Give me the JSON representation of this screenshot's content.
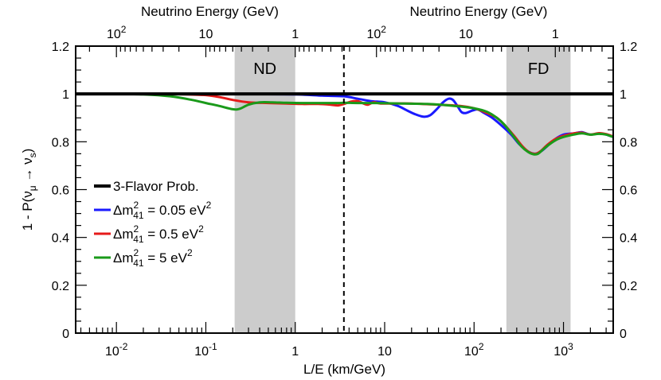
{
  "chart_data": {
    "type": "line",
    "xscale": "log",
    "xlabel": "L/E (km/GeV)",
    "xlim": [
      0.0035,
      3600
    ],
    "ylabel": "1 - P(ν_μ → ν_s)",
    "ylim": [
      0,
      1.2
    ],
    "y_ticks": [
      "0",
      "0.2",
      "0.4",
      "0.6",
      "0.8",
      "1",
      "1.2"
    ],
    "x_ticks": [
      {
        "value": 0.01,
        "base": "10",
        "exp": "-2"
      },
      {
        "value": 0.1,
        "base": "10",
        "exp": "-1"
      },
      {
        "value": 1,
        "base": "1",
        "exp": ""
      },
      {
        "value": 10,
        "base": "10",
        "exp": ""
      },
      {
        "value": 100,
        "base": "10",
        "exp": "2"
      },
      {
        "value": 1000,
        "base": "10",
        "exp": "3"
      }
    ],
    "top_axes": [
      {
        "label": "Neutrino Energy (GeV)",
        "baseline_km": 1.0,
        "xrange": [
          0.0035,
          3.5
        ],
        "ticks": [
          {
            "energy": 100,
            "base": "10",
            "exp": "2"
          },
          {
            "energy": 10,
            "base": "10",
            "exp": ""
          },
          {
            "energy": 1,
            "base": "1",
            "exp": ""
          }
        ]
      },
      {
        "label": "Neutrino Energy (GeV)",
        "baseline_km": 810,
        "xrange": [
          3.5,
          3600
        ],
        "ticks": [
          {
            "energy": 100,
            "base": "10",
            "exp": "2"
          },
          {
            "energy": 10,
            "base": "10",
            "exp": ""
          },
          {
            "energy": 1,
            "base": "1",
            "exp": ""
          }
        ]
      }
    ],
    "bands": [
      {
        "label": "ND",
        "x_range": [
          0.21,
          1.0
        ],
        "color": "#cccccc"
      },
      {
        "label": "FD",
        "x_range": [
          230,
          1200
        ],
        "color": "#cccccc"
      }
    ],
    "divider_x": 3.5,
    "legend_position": "bottom-left",
    "legend": [
      {
        "text": "3-Flavor Prob.",
        "color": "#000000"
      },
      {
        "text": "Δm²₄₁ = 0.05 eV²",
        "color": "#1a1aff",
        "main": "Δm",
        "sup": "2",
        "sub": "41",
        "rest": " = 0.05 eV",
        "rest_sup": "2"
      },
      {
        "text": "Δm²₄₁ = 0.5 eV²",
        "color": "#e61a1a",
        "main": "Δm",
        "sup": "2",
        "sub": "41",
        "rest": " = 0.5 eV",
        "rest_sup": "2"
      },
      {
        "text": "Δm²₄₁ = 5 eV²",
        "color": "#1a9a1a",
        "main": "Δm",
        "sup": "2",
        "sub": "41",
        "rest": " = 5 eV",
        "rest_sup": "2"
      }
    ],
    "series": [
      {
        "name": "3-Flavor Prob.",
        "color": "#000000",
        "width": 4,
        "points": [
          [
            0.0035,
            1.0
          ],
          [
            3600,
            1.0
          ]
        ]
      },
      {
        "name": "Δm²₄₁ = 0.05 eV²",
        "color": "#1a1aff",
        "width": 3,
        "points": [
          [
            0.0035,
            1.0
          ],
          [
            0.05,
            1.0
          ],
          [
            0.3,
            0.999
          ],
          [
            1,
            0.998
          ],
          [
            2,
            0.993
          ],
          [
            3.5,
            0.99
          ],
          [
            5,
            0.98
          ],
          [
            7,
            0.97
          ],
          [
            10,
            0.965
          ],
          [
            14,
            0.95
          ],
          [
            18,
            0.93
          ],
          [
            22,
            0.915
          ],
          [
            27,
            0.905
          ],
          [
            32,
            0.91
          ],
          [
            38,
            0.935
          ],
          [
            45,
            0.965
          ],
          [
            52,
            0.98
          ],
          [
            58,
            0.975
          ],
          [
            65,
            0.95
          ],
          [
            72,
            0.925
          ],
          [
            80,
            0.92
          ],
          [
            95,
            0.93
          ],
          [
            110,
            0.935
          ],
          [
            130,
            0.92
          ],
          [
            160,
            0.9
          ],
          [
            200,
            0.87
          ],
          [
            260,
            0.83
          ],
          [
            320,
            0.79
          ],
          [
            400,
            0.76
          ],
          [
            480,
            0.75
          ],
          [
            560,
            0.76
          ],
          [
            650,
            0.78
          ],
          [
            800,
            0.81
          ],
          [
            1000,
            0.83
          ],
          [
            1300,
            0.835
          ],
          [
            1600,
            0.84
          ],
          [
            2000,
            0.83
          ],
          [
            2500,
            0.835
          ],
          [
            3000,
            0.83
          ],
          [
            3600,
            0.82
          ]
        ]
      },
      {
        "name": "Δm²₄₁ = 0.5 eV²",
        "color": "#e61a1a",
        "width": 3,
        "points": [
          [
            0.0035,
            1.0
          ],
          [
            0.02,
            1.0
          ],
          [
            0.05,
            0.999
          ],
          [
            0.1,
            0.995
          ],
          [
            0.15,
            0.985
          ],
          [
            0.2,
            0.975
          ],
          [
            0.3,
            0.965
          ],
          [
            0.5,
            0.962
          ],
          [
            0.8,
            0.96
          ],
          [
            1.2,
            0.958
          ],
          [
            1.8,
            0.958
          ],
          [
            2.5,
            0.955
          ],
          [
            3.0,
            0.952
          ],
          [
            3.5,
            0.958
          ],
          [
            4.2,
            0.968
          ],
          [
            5,
            0.97
          ],
          [
            5.8,
            0.96
          ],
          [
            6.5,
            0.955
          ],
          [
            7.5,
            0.965
          ],
          [
            9,
            0.96
          ],
          [
            12,
            0.96
          ],
          [
            20,
            0.96
          ],
          [
            40,
            0.955
          ],
          [
            70,
            0.95
          ],
          [
            100,
            0.94
          ],
          [
            140,
            0.92
          ],
          [
            180,
            0.9
          ],
          [
            220,
            0.87
          ],
          [
            280,
            0.825
          ],
          [
            350,
            0.78
          ],
          [
            420,
            0.755
          ],
          [
            490,
            0.75
          ],
          [
            560,
            0.762
          ],
          [
            650,
            0.785
          ],
          [
            800,
            0.81
          ],
          [
            1000,
            0.825
          ],
          [
            1300,
            0.835
          ],
          [
            1600,
            0.838
          ],
          [
            2000,
            0.83
          ],
          [
            2500,
            0.836
          ],
          [
            3000,
            0.832
          ],
          [
            3600,
            0.822
          ]
        ]
      },
      {
        "name": "Δm²₄₁ = 5 eV²",
        "color": "#1a9a1a",
        "width": 3,
        "points": [
          [
            0.0035,
            1.0
          ],
          [
            0.01,
            1.0
          ],
          [
            0.02,
            0.998
          ],
          [
            0.04,
            0.99
          ],
          [
            0.07,
            0.975
          ],
          [
            0.1,
            0.962
          ],
          [
            0.14,
            0.95
          ],
          [
            0.2,
            0.936
          ],
          [
            0.24,
            0.938
          ],
          [
            0.3,
            0.955
          ],
          [
            0.4,
            0.965
          ],
          [
            0.55,
            0.965
          ],
          [
            0.8,
            0.963
          ],
          [
            1.2,
            0.962
          ],
          [
            2,
            0.962
          ],
          [
            3,
            0.962
          ],
          [
            3.5,
            0.963
          ],
          [
            5,
            0.962
          ],
          [
            8,
            0.962
          ],
          [
            15,
            0.96
          ],
          [
            30,
            0.958
          ],
          [
            60,
            0.95
          ],
          [
            100,
            0.94
          ],
          [
            140,
            0.925
          ],
          [
            180,
            0.9
          ],
          [
            220,
            0.87
          ],
          [
            280,
            0.82
          ],
          [
            340,
            0.78
          ],
          [
            400,
            0.758
          ],
          [
            460,
            0.748
          ],
          [
            520,
            0.75
          ],
          [
            600,
            0.77
          ],
          [
            700,
            0.79
          ],
          [
            850,
            0.81
          ],
          [
            1000,
            0.82
          ],
          [
            1300,
            0.83
          ],
          [
            1600,
            0.835
          ],
          [
            2000,
            0.83
          ],
          [
            2500,
            0.833
          ],
          [
            3000,
            0.83
          ],
          [
            3600,
            0.82
          ]
        ]
      }
    ]
  }
}
